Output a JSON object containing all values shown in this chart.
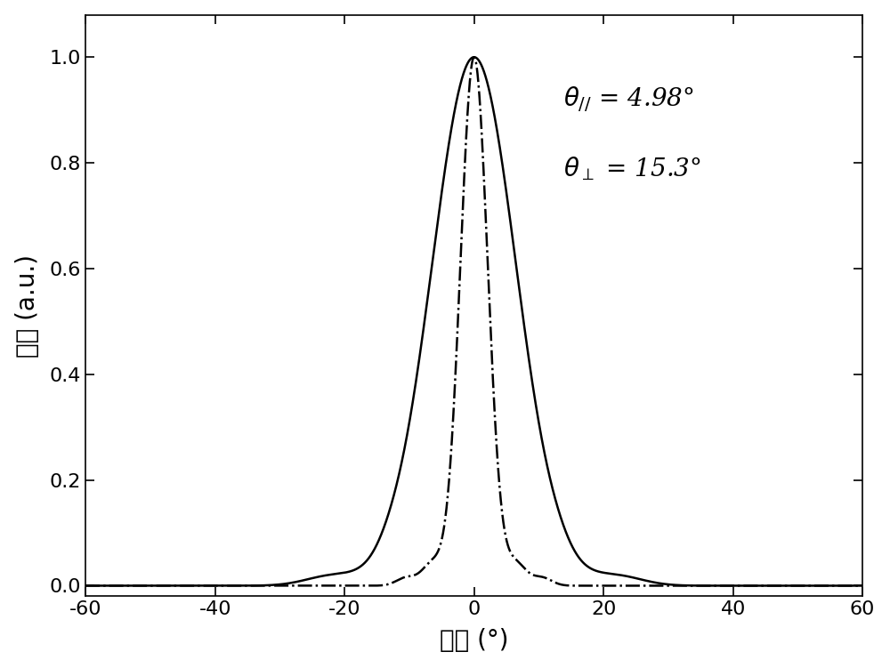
{
  "xlabel": "角度 (°)",
  "ylabel": "强度 (a.u.)",
  "xlim": [
    -60,
    60
  ],
  "ylim": [
    -0.02,
    1.08
  ],
  "xticks": [
    -60,
    -40,
    -20,
    0,
    20,
    40,
    60
  ],
  "yticks": [
    0.0,
    0.2,
    0.4,
    0.6,
    0.8,
    1.0
  ],
  "line_color": "#000000",
  "fwhm_parallel": 4.98,
  "fwhm_perp": 15.3,
  "background_color": "#ffffff",
  "fig_width": 10.0,
  "fig_height": 7.51
}
